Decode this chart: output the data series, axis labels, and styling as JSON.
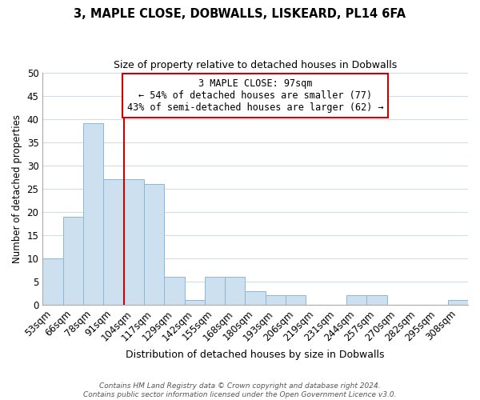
{
  "title": "3, MAPLE CLOSE, DOBWALLS, LISKEARD, PL14 6FA",
  "subtitle": "Size of property relative to detached houses in Dobwalls",
  "xlabel": "Distribution of detached houses by size in Dobwalls",
  "ylabel": "Number of detached properties",
  "bar_labels": [
    "53sqm",
    "66sqm",
    "78sqm",
    "91sqm",
    "104sqm",
    "117sqm",
    "129sqm",
    "142sqm",
    "155sqm",
    "168sqm",
    "180sqm",
    "193sqm",
    "206sqm",
    "219sqm",
    "231sqm",
    "244sqm",
    "257sqm",
    "270sqm",
    "282sqm",
    "295sqm",
    "308sqm"
  ],
  "bar_values": [
    10,
    19,
    39,
    27,
    27,
    26,
    6,
    1,
    6,
    6,
    3,
    2,
    2,
    0,
    0,
    2,
    2,
    0,
    0,
    0,
    1
  ],
  "bar_color": "#cce0f0",
  "bar_edge_color": "#8ab8d8",
  "vline_x": 3.5,
  "vline_color": "#cc0000",
  "annotation_text": "3 MAPLE CLOSE: 97sqm\n← 54% of detached houses are smaller (77)\n43% of semi-detached houses are larger (62) →",
  "annotation_box_color": "#ffffff",
  "annotation_box_edge": "#cc0000",
  "ylim": [
    0,
    50
  ],
  "yticks": [
    0,
    5,
    10,
    15,
    20,
    25,
    30,
    35,
    40,
    45,
    50
  ],
  "footer": "Contains HM Land Registry data © Crown copyright and database right 2024.\nContains public sector information licensed under the Open Government Licence v3.0.",
  "background_color": "#ffffff",
  "grid_color": "#d0dcea"
}
